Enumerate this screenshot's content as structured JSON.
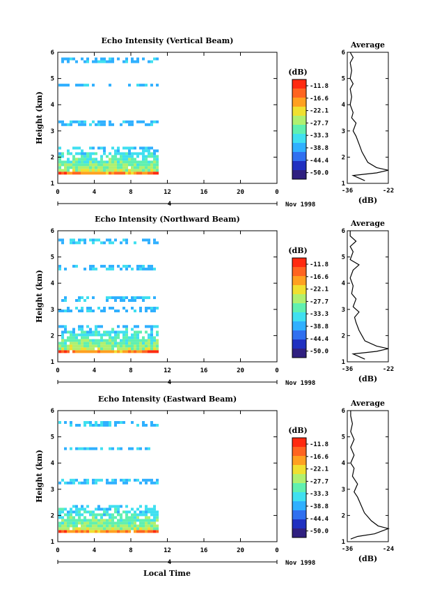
{
  "colorbar_unit": "(dB)",
  "colorbar_ticks": [
    "-11.8",
    "-16.6",
    "-22.1",
    "-27.7",
    "-33.3",
    "-38.8",
    "-44.4",
    "-50.0"
  ],
  "colorbar_colors": [
    "#ff2a10",
    "#ff6420",
    "#ffa020",
    "#f0e030",
    "#b0f070",
    "#60f0b0",
    "#40e0f0",
    "#30b0ff",
    "#3070f0",
    "#2030c0",
    "#302080"
  ],
  "average_title": "Average",
  "average_xlabel": "(dB)",
  "date_label": "Nov 1998",
  "xlabel": "Local Time",
  "chart_data": [
    {
      "type": "heatmap",
      "title": "Echo Intensity (Vertical Beam)",
      "ylabel": "Height (km)",
      "xlim": [
        0,
        24
      ],
      "ylim": [
        1,
        6
      ],
      "x_ticks": [
        "0",
        "4",
        "8",
        "12",
        "16",
        "20",
        "0"
      ],
      "y_ticks": [
        "1",
        "2",
        "3",
        "4",
        "5",
        "6"
      ],
      "day_marker": "4",
      "data_extent_hours": [
        0,
        11
      ],
      "echo_layers": [
        {
          "bottom_km": 1.4,
          "top_km": 2.4,
          "intensity": "strong"
        },
        {
          "bottom_km": 3.2,
          "top_km": 3.4,
          "intensity": "weak"
        },
        {
          "bottom_km": 4.7,
          "top_km": 4.8,
          "intensity": "weak"
        },
        {
          "bottom_km": 5.6,
          "top_km": 5.8,
          "intensity": "weak"
        }
      ],
      "average_profile": {
        "xlim": [
          -36,
          -22
        ],
        "x_ticks": [
          "-36",
          "-22"
        ],
        "y_ticks": [
          "1",
          "2",
          "3",
          "4",
          "5",
          "6"
        ],
        "points": [
          [
            -30,
            1.1
          ],
          [
            -34,
            1.3
          ],
          [
            -26,
            1.4
          ],
          [
            -22,
            1.5
          ],
          [
            -26,
            1.6
          ],
          [
            -29,
            1.8
          ],
          [
            -30,
            2.0
          ],
          [
            -31,
            2.2
          ],
          [
            -32,
            2.5
          ],
          [
            -33,
            2.8
          ],
          [
            -34,
            3.0
          ],
          [
            -33,
            3.3
          ],
          [
            -34.5,
            3.5
          ],
          [
            -34,
            3.7
          ],
          [
            -35,
            4.0
          ],
          [
            -34.5,
            4.3
          ],
          [
            -35,
            4.6
          ],
          [
            -34,
            4.8
          ],
          [
            -35,
            5.0
          ],
          [
            -34.5,
            5.3
          ],
          [
            -35,
            5.6
          ],
          [
            -34,
            5.8
          ],
          [
            -35,
            6.0
          ]
        ]
      }
    },
    {
      "type": "heatmap",
      "title": "Echo Intensity (Northward Beam)",
      "ylabel": "Height (km)",
      "xlim": [
        0,
        24
      ],
      "ylim": [
        1,
        6
      ],
      "x_ticks": [
        "0",
        "4",
        "8",
        "12",
        "16",
        "20",
        "0"
      ],
      "y_ticks": [
        "1",
        "2",
        "3",
        "4",
        "5",
        "6"
      ],
      "day_marker": "4",
      "data_extent_hours": [
        0,
        11
      ],
      "echo_layers": [
        {
          "bottom_km": 1.4,
          "top_km": 2.4,
          "intensity": "strong"
        },
        {
          "bottom_km": 2.9,
          "top_km": 3.1,
          "intensity": "weak"
        },
        {
          "bottom_km": 3.3,
          "top_km": 3.5,
          "intensity": "weak"
        },
        {
          "bottom_km": 4.5,
          "top_km": 4.7,
          "intensity": "weak"
        },
        {
          "bottom_km": 5.5,
          "top_km": 5.7,
          "intensity": "weak"
        }
      ],
      "average_profile": {
        "xlim": [
          -36,
          -22
        ],
        "x_ticks": [
          "-36",
          "-22"
        ],
        "y_ticks": [
          "1",
          "2",
          "3",
          "4",
          "5",
          "6"
        ],
        "points": [
          [
            -30,
            1.1
          ],
          [
            -34,
            1.3
          ],
          [
            -26,
            1.4
          ],
          [
            -22,
            1.5
          ],
          [
            -26,
            1.6
          ],
          [
            -30,
            1.8
          ],
          [
            -31,
            2.0
          ],
          [
            -32,
            2.2
          ],
          [
            -33,
            2.5
          ],
          [
            -33.5,
            2.7
          ],
          [
            -32,
            2.9
          ],
          [
            -34,
            3.1
          ],
          [
            -33,
            3.4
          ],
          [
            -34.5,
            3.6
          ],
          [
            -34,
            3.9
          ],
          [
            -35,
            4.2
          ],
          [
            -34,
            4.5
          ],
          [
            -32,
            4.7
          ],
          [
            -35,
            4.9
          ],
          [
            -34,
            5.2
          ],
          [
            -35,
            5.4
          ],
          [
            -33,
            5.6
          ],
          [
            -35,
            5.8
          ],
          [
            -35,
            6.0
          ]
        ]
      }
    },
    {
      "type": "heatmap",
      "title": "Echo Intensity (Eastward Beam)",
      "ylabel": "Height (km)",
      "xlim": [
        0,
        24
      ],
      "ylim": [
        1,
        6
      ],
      "x_ticks": [
        "0",
        "4",
        "8",
        "12",
        "16",
        "20",
        "0"
      ],
      "y_ticks": [
        "1",
        "2",
        "3",
        "4",
        "5",
        "6"
      ],
      "day_marker": "4",
      "data_extent_hours": [
        0,
        11
      ],
      "echo_layers": [
        {
          "bottom_km": 1.4,
          "top_km": 2.4,
          "intensity": "strong"
        },
        {
          "bottom_km": 3.2,
          "top_km": 3.4,
          "intensity": "weak"
        },
        {
          "bottom_km": 4.5,
          "top_km": 4.6,
          "intensity": "weak"
        },
        {
          "bottom_km": 5.4,
          "top_km": 5.6,
          "intensity": "weak"
        }
      ],
      "average_profile": {
        "xlim": [
          -36,
          -24
        ],
        "x_ticks": [
          "-36",
          "-24"
        ],
        "y_ticks": [
          "1",
          "2",
          "3",
          "4",
          "5",
          "6"
        ],
        "points": [
          [
            -35,
            1.1
          ],
          [
            -33,
            1.2
          ],
          [
            -28,
            1.3
          ],
          [
            -24,
            1.5
          ],
          [
            -27,
            1.6
          ],
          [
            -29,
            1.8
          ],
          [
            -31,
            2.1
          ],
          [
            -32,
            2.4
          ],
          [
            -33,
            2.7
          ],
          [
            -34,
            2.9
          ],
          [
            -33,
            3.2
          ],
          [
            -34.5,
            3.5
          ],
          [
            -34,
            3.8
          ],
          [
            -35,
            4.0
          ],
          [
            -34,
            4.3
          ],
          [
            -35,
            4.6
          ],
          [
            -34,
            4.9
          ],
          [
            -35,
            5.2
          ],
          [
            -34.5,
            5.5
          ],
          [
            -35,
            5.8
          ],
          [
            -35,
            6.0
          ]
        ]
      }
    }
  ]
}
